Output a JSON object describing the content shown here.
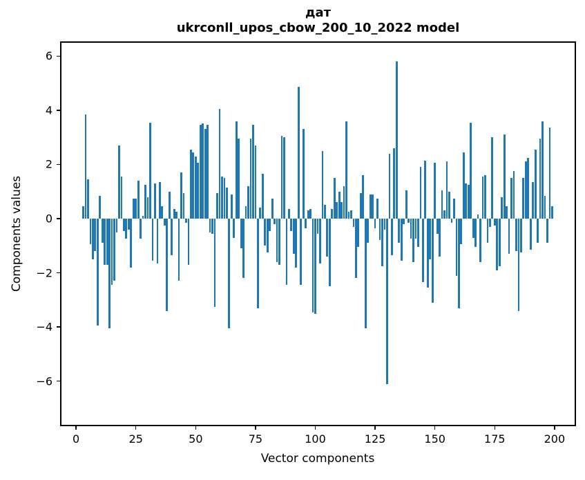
{
  "title": {
    "line1": "дат",
    "line2": "ukrconll_upos_cbow_200_10_2022 model"
  },
  "chart_data": {
    "type": "bar",
    "title": "дат",
    "subtitle": "ukrconll_upos_cbow_200_10_2022 model",
    "xlabel": "Vector components",
    "ylabel": "Components values",
    "bar_color": "#1f77b4",
    "grid": false,
    "legend": false,
    "n_components": 200,
    "x_ticks": [
      0,
      25,
      50,
      75,
      100,
      125,
      150,
      175,
      200
    ],
    "y_ticks": [
      6,
      4,
      2,
      0,
      -2,
      -4,
      -6
    ],
    "y_tick_labels": [
      "6",
      "4",
      "2",
      "0",
      "−2",
      "−4",
      "−6"
    ],
    "xlim": [
      -6.1,
      208.4
    ],
    "ylim": [
      -7.61,
      6.49
    ],
    "values": [
      0.0,
      0.0,
      0.0,
      0.45,
      3.85,
      1.45,
      -0.95,
      -1.5,
      -1.2,
      -3.95,
      0.85,
      -0.9,
      -1.7,
      -1.7,
      -4.05,
      -2.45,
      -2.3,
      -0.5,
      2.7,
      1.55,
      -0.45,
      -0.75,
      -0.4,
      -1.8,
      0.75,
      0.75,
      1.4,
      -0.75,
      0.1,
      1.25,
      0.8,
      3.55,
      -1.55,
      1.3,
      -1.65,
      1.35,
      0.45,
      -0.25,
      -3.4,
      1.0,
      -1.35,
      0.35,
      0.25,
      -2.3,
      1.7,
      0.95,
      -0.15,
      -1.7,
      2.55,
      2.45,
      2.3,
      2.05,
      3.45,
      3.5,
      3.3,
      3.45,
      -0.5,
      -0.55,
      -3.25,
      0.95,
      4.05,
      1.55,
      1.5,
      1.15,
      -4.05,
      0.9,
      -0.7,
      3.6,
      2.95,
      -1.1,
      -2.2,
      0.45,
      1.2,
      2.95,
      3.45,
      2.7,
      -3.3,
      0.4,
      1.65,
      -1.0,
      -1.25,
      -0.45,
      0.75,
      -0.2,
      -1.6,
      -1.7,
      3.05,
      3.0,
      -2.45,
      0.35,
      -0.45,
      -1.3,
      -1.8,
      4.85,
      -2.45,
      3.3,
      -0.35,
      0.3,
      0.35,
      -3.45,
      -3.5,
      -0.55,
      -1.65,
      2.5,
      0.5,
      -1.4,
      -2.5,
      0.35,
      1.5,
      0.6,
      1.0,
      0.6,
      1.2,
      3.6,
      0.25,
      0.3,
      -0.3,
      -2.2,
      -1.05,
      0.95,
      1.6,
      -4.05,
      -0.9,
      0.9,
      0.9,
      -0.35,
      0.75,
      -0.8,
      -1.75,
      -0.4,
      -6.1,
      2.4,
      -1.35,
      2.6,
      5.8,
      -0.9,
      -1.55,
      -0.2,
      1.05,
      -0.15,
      -0.75,
      -1.6,
      -0.75,
      -1.05,
      1.9,
      -2.35,
      2.15,
      -2.55,
      -1.5,
      -3.1,
      2.05,
      -0.55,
      -1.4,
      1.05,
      0.3,
      2.1,
      1.0,
      -0.15,
      0.75,
      -2.1,
      -3.3,
      -0.95,
      2.45,
      1.3,
      1.25,
      3.55,
      -0.7,
      -1.05,
      0.15,
      -1.6,
      1.55,
      1.6,
      -0.9,
      -0.3,
      3.0,
      -0.25,
      -1.9,
      -1.75,
      0.8,
      3.1,
      0.45,
      -1.3,
      1.5,
      1.75,
      -1.2,
      -3.4,
      -1.25,
      1.5,
      2.1,
      2.25,
      -1.15,
      1.35,
      2.55,
      -0.9,
      2.95,
      3.6,
      0.85,
      -0.9,
      3.35,
      0.45
    ]
  }
}
